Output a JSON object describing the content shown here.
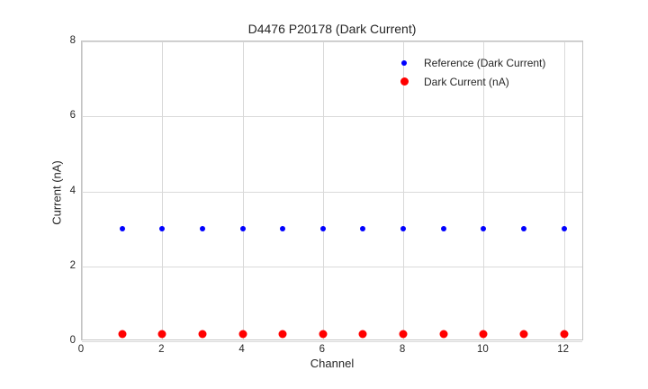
{
  "chart_data": {
    "type": "scatter",
    "title": "D4476 P20178 (Dark Current)",
    "xlabel": "Channel",
    "ylabel": "Current (nA)",
    "xlim": [
      0,
      12.5
    ],
    "ylim": [
      0,
      8
    ],
    "xticks": [
      0,
      2,
      4,
      6,
      8,
      10,
      12
    ],
    "yticks": [
      0,
      2,
      4,
      6,
      8
    ],
    "grid": true,
    "legend_position": "upper right",
    "legend_frame": false,
    "background_color": "#ffffff",
    "gridline_color": "#d9d9d9",
    "spine_color": "#c4c4c4",
    "text_color": "#262626",
    "x": [
      1,
      2,
      3,
      4,
      5,
      6,
      7,
      8,
      9,
      10,
      11,
      12
    ],
    "series": [
      {
        "name": "Reference (Dark Current)",
        "color": "#0000ff",
        "marker": "circle",
        "marker_px": 6,
        "values": [
          3.0,
          3.0,
          3.0,
          3.0,
          3.0,
          3.0,
          3.0,
          3.0,
          3.0,
          3.0,
          3.0,
          3.0
        ]
      },
      {
        "name": "Dark Current (nA)",
        "color": "#ff0000",
        "marker": "circle",
        "marker_px": 9,
        "values": [
          0.2,
          0.2,
          0.2,
          0.2,
          0.2,
          0.2,
          0.2,
          0.2,
          0.2,
          0.2,
          0.2,
          0.2
        ]
      }
    ]
  }
}
